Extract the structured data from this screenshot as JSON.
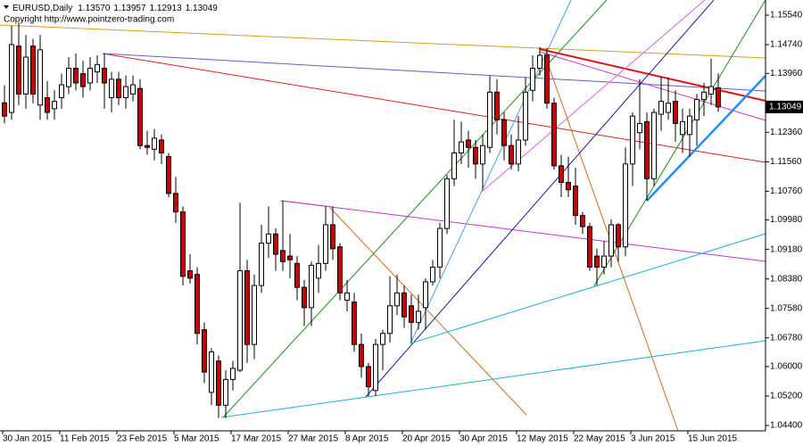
{
  "header": {
    "symbol": "EURUSD,Daily",
    "values": [
      1.1357,
      1.13957,
      1.12913,
      1.13049
    ],
    "value_labels": [
      "1.13570",
      "1.13957",
      "1.12913",
      "1.13049"
    ],
    "copyright": "Copyright http://www.pointzero-trading.com"
  },
  "chart_data": {
    "type": "candlestick",
    "categories": [
      "30 Jan 2015",
      null,
      null,
      null,
      null,
      null,
      null,
      null,
      "11 Feb 2015",
      null,
      null,
      null,
      null,
      null,
      null,
      null,
      "23 Feb 2015",
      null,
      null,
      null,
      null,
      null,
      null,
      null,
      "5 Mar 2015",
      null,
      null,
      null,
      null,
      null,
      null,
      null,
      "17 Mar 2015",
      null,
      null,
      null,
      null,
      null,
      null,
      null,
      "27 Mar 2015",
      null,
      null,
      null,
      null,
      null,
      null,
      null,
      "8 Apr 2015",
      null,
      null,
      null,
      null,
      null,
      null,
      null,
      "20 Apr 2015",
      null,
      null,
      null,
      null,
      null,
      null,
      null,
      "30 Apr 2015",
      null,
      null,
      null,
      null,
      null,
      null,
      null,
      "12 May 2015",
      null,
      null,
      null,
      null,
      null,
      null,
      null,
      "22 May 2015",
      null,
      null,
      null,
      null,
      null,
      null,
      null,
      "3 Jun 2015",
      null,
      null,
      null,
      null,
      null,
      null,
      null,
      "15 Jun 2015",
      null,
      null,
      null,
      null
    ],
    "open": [
      1.1316,
      1.129,
      1.147,
      1.134,
      1.147,
      1.131,
      1.133,
      1.13,
      1.133,
      1.136,
      1.141,
      1.1395,
      1.137,
      1.14,
      1.141,
      1.133,
      1.138,
      1.133,
      1.134,
      1.1355,
      1.12,
      1.119,
      1.1215,
      1.117,
      1.107,
      1.102,
      1.086,
      1.085,
      1.07,
      1.053,
      1.0615,
      1.0495,
      1.0565,
      1.059,
      1.086,
      1.066,
      1.082,
      1.0935,
      1.096,
      1.0915,
      1.09,
      1.088,
      1.0815,
      1.076,
      1.084,
      1.088,
      1.0985,
      1.0925,
      1.078,
      1.0775,
      1.066,
      1.06,
      1.0535,
      1.066,
      1.069,
      1.0765,
      1.08,
      1.0765,
      1.072,
      1.076,
      1.083,
      1.087,
      1.0975,
      1.111,
      1.118,
      1.1215,
      1.1195,
      1.115,
      1.1195,
      1.1345,
      1.127,
      1.12,
      1.115,
      1.1215,
      1.135,
      1.141,
      1.1445,
      1.1315,
      1.1145,
      1.11,
      1.109,
      1.101,
      1.098,
      1.09,
      1.087,
      1.09,
      1.0985,
      1.0925,
      1.115,
      1.1235,
      1.1265,
      1.111,
      1.1285,
      1.129,
      1.132,
      1.123,
      1.123,
      1.127,
      1.1325,
      1.134,
      1.1357
    ],
    "high": [
      1.1364,
      1.1525,
      1.1534,
      1.15,
      1.149,
      1.15,
      1.1375,
      1.135,
      1.1395,
      1.144,
      1.145,
      1.143,
      1.144,
      1.1445,
      1.145,
      1.14,
      1.14,
      1.139,
      1.139,
      1.138,
      1.124,
      1.1245,
      1.123,
      1.118,
      1.1115,
      1.1035,
      1.0905,
      1.087,
      1.072,
      1.065,
      1.063,
      1.059,
      1.0615,
      1.1045,
      1.089,
      1.085,
      1.0985,
      1.1035,
      1.0975,
      1.105,
      1.096,
      1.09,
      1.0835,
      1.0885,
      1.093,
      1.1035,
      1.1035,
      1.0935,
      1.0835,
      1.08,
      1.069,
      1.061,
      1.0675,
      1.07,
      1.0845,
      1.085,
      1.082,
      1.0795,
      1.0795,
      1.084,
      1.089,
      1.099,
      1.112,
      1.127,
      1.1265,
      1.124,
      1.1215,
      1.123,
      1.139,
      1.138,
      1.129,
      1.123,
      1.128,
      1.1385,
      1.1445,
      1.1467,
      1.1465,
      1.133,
      1.1175,
      1.117,
      1.114,
      1.102,
      1.099,
      1.092,
      1.094,
      1.1,
      1.099,
      1.1195,
      1.129,
      1.138,
      1.129,
      1.13,
      1.1385,
      1.1385,
      1.135,
      1.13,
      1.13,
      1.134,
      1.137,
      1.1436,
      1.13957
    ],
    "low": [
      1.126,
      1.127,
      1.131,
      1.13,
      1.1315,
      1.127,
      1.127,
      1.127,
      1.13,
      1.134,
      1.135,
      1.133,
      1.135,
      1.137,
      1.13,
      1.129,
      1.131,
      1.13,
      1.132,
      1.119,
      1.1175,
      1.116,
      1.115,
      1.106,
      1.099,
      1.082,
      1.0825,
      1.066,
      1.0555,
      1.0495,
      1.046,
      1.046,
      1.0535,
      1.0585,
      1.061,
      1.062,
      1.08,
      1.0895,
      1.086,
      1.086,
      1.084,
      1.078,
      1.071,
      1.071,
      1.08,
      1.086,
      1.089,
      1.078,
      1.075,
      1.064,
      1.057,
      1.052,
      1.052,
      1.059,
      1.0665,
      1.074,
      1.0705,
      1.0665,
      1.07,
      1.07,
      1.082,
      1.084,
      1.096,
      1.109,
      1.115,
      1.114,
      1.111,
      1.108,
      1.118,
      1.123,
      1.116,
      1.1135,
      1.113,
      1.12,
      1.132,
      1.139,
      1.13,
      1.1135,
      1.106,
      1.106,
      1.0985,
      1.096,
      1.086,
      1.082,
      1.085,
      1.087,
      1.0885,
      1.09,
      1.109,
      1.119,
      1.105,
      1.109,
      1.124,
      1.127,
      1.121,
      1.118,
      1.117,
      1.12,
      1.128,
      1.131,
      1.12913
    ],
    "close": [
      1.128,
      1.1474,
      1.134,
      1.144,
      1.134,
      1.146,
      1.129,
      1.132,
      1.1365,
      1.141,
      1.137,
      1.136,
      1.141,
      1.142,
      1.137,
      1.138,
      1.133,
      1.136,
      1.1365,
      1.12,
      1.1195,
      1.122,
      1.118,
      1.107,
      1.102,
      1.0845,
      1.084,
      1.069,
      1.0585,
      1.064,
      1.0495,
      1.0565,
      1.0595,
      1.086,
      1.066,
      1.082,
      1.0935,
      1.096,
      1.0905,
      1.0885,
      1.089,
      1.0815,
      1.076,
      1.0875,
      1.088,
      1.0985,
      1.092,
      1.08,
      1.08,
      1.066,
      1.06,
      1.0545,
      1.066,
      1.069,
      1.0765,
      1.08,
      1.0735,
      1.072,
      1.075,
      1.083,
      1.087,
      1.0975,
      1.111,
      1.118,
      1.121,
      1.1195,
      1.115,
      1.12,
      1.1345,
      1.127,
      1.12,
      1.115,
      1.1215,
      1.1345,
      1.141,
      1.1445,
      1.1315,
      1.1145,
      1.11,
      1.108,
      1.101,
      1.098,
      1.087,
      1.087,
      1.09,
      1.0985,
      1.0925,
      1.115,
      1.128,
      1.126,
      1.111,
      1.129,
      1.132,
      1.1315,
      1.126,
      1.1265,
      1.128,
      1.1325,
      1.1345,
      1.136,
      1.13049
    ],
    "up_color": "#ffffff",
    "down_color": "#cc0000",
    "ylim": [
      1.04255,
      1.15952
    ],
    "yticks": [
      {
        "value": 1.1554,
        "label": "1.15540"
      },
      {
        "value": 1.1474,
        "label": "1.14740"
      },
      {
        "value": 1.1396,
        "label": "1.13960"
      },
      {
        "value": 1.1236,
        "label": "1.12360"
      },
      {
        "value": 1.1156,
        "label": "1.11560"
      },
      {
        "value": 1.1076,
        "label": "1.10760"
      },
      {
        "value": 1.0998,
        "label": "1.09980"
      },
      {
        "value": 1.0918,
        "label": "1.09180"
      },
      {
        "value": 1.0838,
        "label": "1.08380"
      },
      {
        "value": 1.0758,
        "label": "1.07580"
      },
      {
        "value": 1.0678,
        "label": "1.06780"
      },
      {
        "value": 1.06,
        "label": "1.06000"
      },
      {
        "value": 1.052,
        "label": "1.05200"
      },
      {
        "value": 1.044,
        "label": "1.04400"
      }
    ],
    "last_price": {
      "value": 1.13049,
      "label": "1.13049"
    }
  }
}
